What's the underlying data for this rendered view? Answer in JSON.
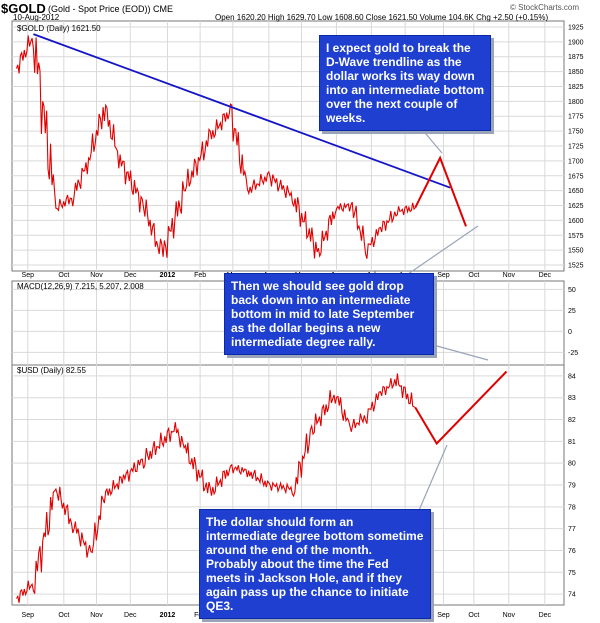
{
  "header": {
    "symbol": "$GOLD",
    "description": "(Gold - Spot Price (EOD))",
    "exchange": "CME",
    "date": "10-Aug-2012",
    "ohlc": "Open 1620.20  High 1629.70  Low 1608.60  Close 1621.50  Volume 104.6K  Chg +2.50 (+0.15%)",
    "brand": "© StockCharts.com"
  },
  "colors": {
    "price_bar": "#e00000",
    "trendline": "#1414c8",
    "projection": "#e00000",
    "callout_bg": "#1e3fd0",
    "callout_text": "#ffffff",
    "grid": "#d9d9d9"
  },
  "chart_data": [
    {
      "type": "line",
      "legend": "$GOLD (Daily) 1621.50",
      "y_ticks": [
        "1925",
        "1900",
        "1875",
        "1850",
        "1825",
        "1800",
        "1775",
        "1750",
        "1725",
        "1700",
        "1675",
        "1650",
        "1625",
        "1600",
        "1575",
        "1550",
        "1525"
      ],
      "ylim": [
        1515,
        1935
      ],
      "series": [
        {
          "x": [
            "2011-08-22",
            "2011-09-06",
            "2011-09-26",
            "2011-10-11",
            "2011-10-25",
            "2011-11-08",
            "2011-11-22",
            "2011-12-14",
            "2011-12-29",
            "2012-01-20",
            "2012-02-10",
            "2012-02-28",
            "2012-03-14",
            "2012-04-02",
            "2012-04-23",
            "2012-05-16",
            "2012-05-31",
            "2012-06-15",
            "2012-06-28",
            "2012-07-10",
            "2012-07-25",
            "2012-08-10"
          ],
          "values": [
            1855,
            1910,
            1620,
            1640,
            1700,
            1790,
            1700,
            1620,
            1540,
            1660,
            1740,
            1785,
            1650,
            1675,
            1640,
            1545,
            1620,
            1625,
            1550,
            1585,
            1615,
            1621.5
          ]
        }
      ],
      "trendline": {
        "x": [
          "2011-09-06",
          "2012-09-10"
        ],
        "values": [
          1913,
          1655
        ]
      },
      "projection": {
        "x": [
          "2012-08-10",
          "2012-09-01",
          "2012-09-24"
        ],
        "values": [
          1621.5,
          1705,
          1590
        ]
      }
    },
    {
      "type": "line",
      "legend": "MACD(12,26,9) 7.215, 5.207, 2.008",
      "y_ticks": [
        "50",
        "25",
        "0",
        "-25"
      ],
      "ylim": [
        -40,
        60
      ]
    },
    {
      "type": "line",
      "legend": "$USD (Daily) 82.55",
      "y_ticks": [
        "84",
        "83",
        "82",
        "81",
        "80",
        "79",
        "78",
        "77",
        "76",
        "75",
        "74"
      ],
      "ylim": [
        73.5,
        84.5
      ],
      "series": [
        {
          "x": [
            "2011-08-22",
            "2011-09-06",
            "2011-09-26",
            "2011-10-11",
            "2011-10-27",
            "2011-11-08",
            "2011-11-25",
            "2011-12-14",
            "2012-01-10",
            "2012-01-20",
            "2012-02-10",
            "2012-02-28",
            "2012-03-15",
            "2012-04-02",
            "2012-04-24",
            "2012-05-10",
            "2012-05-31",
            "2012-06-13",
            "2012-06-28",
            "2012-07-10",
            "2012-07-24",
            "2012-08-10"
          ],
          "values": [
            73.8,
            74.5,
            78.8,
            77.2,
            75.8,
            78.5,
            79.3,
            80.2,
            81.6,
            80.5,
            78.6,
            79.8,
            79.6,
            79.0,
            78.8,
            81.5,
            83.2,
            81.6,
            82.2,
            83.2,
            83.8,
            82.55
          ]
        }
      ],
      "projection": {
        "x": [
          "2012-08-10",
          "2012-08-29",
          "2012-10-30"
        ],
        "values": [
          82.55,
          80.9,
          84.2
        ]
      }
    }
  ],
  "x_axis": {
    "labels": [
      "Sep",
      "Oct",
      "Nov",
      "Dec",
      "2012",
      "Feb",
      "Mar",
      "Apr",
      "May",
      "Jun",
      "Jul",
      "Aug",
      "Sep",
      "Oct",
      "Nov",
      "Dec"
    ],
    "dates": [
      "2011-09-01",
      "2011-10-03",
      "2011-11-01",
      "2011-12-01",
      "2012-01-03",
      "2012-02-01",
      "2012-03-01",
      "2012-04-02",
      "2012-05-01",
      "2012-06-01",
      "2012-07-02",
      "2012-08-01",
      "2012-09-04",
      "2012-10-01",
      "2012-11-01",
      "2012-12-03"
    ]
  },
  "callouts": {
    "gold_break": "I expect gold to break the D-Wave trendline as the dollar works its way down into an intermediate bottom over the next couple of weeks.",
    "gold_drop": "Then we should see gold drop back down into an intermediate bottom in mid to late September as the dollar begins a new intermediate degree rally.",
    "dollar_bottom": "The dollar should form an intermediate degree bottom sometime around the end of the month. Probably about the time the Fed meets in Jackson Hole, and if they again pass up the chance to initiate QE3."
  }
}
